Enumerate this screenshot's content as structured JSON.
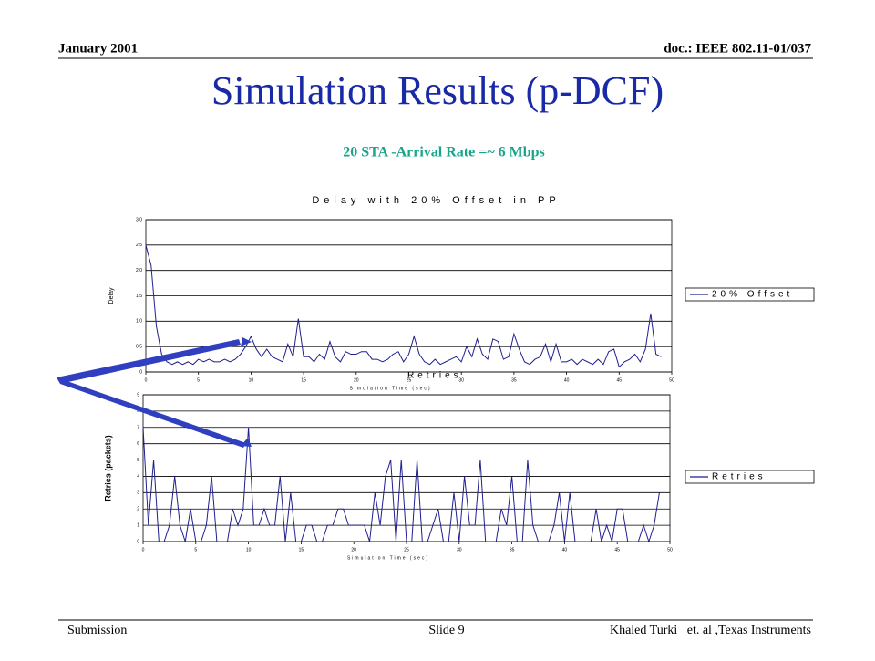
{
  "header": {
    "date": "January 2001",
    "doc": "doc.: IEEE 802.11-01/037"
  },
  "title": "Simulation Results (p-DCF)",
  "subtitle": "20 STA -Arrival Rate =~ 6 Mbps",
  "footer": {
    "left": "Submission",
    "center": "Slide 9",
    "right": "Khaled Turki   et. al ,Texas Instruments"
  },
  "chart_data": [
    {
      "type": "line",
      "title": "Delay with 20% Offset in PP",
      "x_label": "Simulation Time (sec)",
      "y_label": "Delay",
      "annotation": "Retries",
      "xlim": [
        0,
        50
      ],
      "xticks": [
        0,
        5,
        10,
        15,
        20,
        25,
        30,
        35,
        40,
        45,
        50
      ],
      "ylim": [
        0,
        3
      ],
      "yticks": [
        0,
        0.5,
        {
          "value": 1,
          "label": "1.0"
        },
        1.5,
        {
          "value": 2,
          "label": "2.0"
        },
        2.5,
        {
          "value": 3,
          "label": "3.0"
        }
      ],
      "grid": true,
      "x": [
        0,
        0.5,
        1,
        1.5,
        2,
        2.5,
        3,
        3.5,
        4,
        4.5,
        5,
        5.5,
        6,
        6.5,
        7,
        7.5,
        8,
        8.5,
        9,
        9.5,
        10,
        10.5,
        11,
        11.5,
        12,
        12.5,
        13,
        13.5,
        14,
        14.5,
        15,
        15.5,
        16,
        16.5,
        17,
        17.5,
        18,
        18.5,
        19,
        19.5,
        20,
        20.5,
        21,
        21.5,
        22,
        22.5,
        23,
        23.5,
        24,
        24.5,
        25,
        25.5,
        26,
        26.5,
        27,
        27.5,
        28,
        28.5,
        29,
        29.5,
        30,
        30.5,
        31,
        31.5,
        32,
        32.5,
        33,
        33.5,
        34,
        34.5,
        35,
        35.5,
        36,
        36.5,
        37,
        37.5,
        38,
        38.5,
        39,
        39.5,
        40,
        40.5,
        41,
        41.5,
        42,
        42.5,
        43,
        43.5,
        44,
        44.5,
        45,
        45.5,
        46,
        46.5,
        47,
        47.5,
        48,
        48.5,
        49
      ],
      "series": [
        {
          "name": "20% Offset",
          "color": "#1f1f8f",
          "values": [
            2.5,
            2.1,
            0.9,
            0.35,
            0.2,
            0.15,
            0.2,
            0.15,
            0.2,
            0.15,
            0.25,
            0.2,
            0.25,
            0.2,
            0.2,
            0.25,
            0.2,
            0.25,
            0.35,
            0.5,
            0.7,
            0.45,
            0.3,
            0.45,
            0.3,
            0.25,
            0.2,
            0.55,
            0.3,
            1.05,
            0.3,
            0.3,
            0.2,
            0.35,
            0.25,
            0.6,
            0.3,
            0.2,
            0.4,
            0.35,
            0.35,
            0.4,
            0.4,
            0.25,
            0.25,
            0.2,
            0.25,
            0.35,
            0.4,
            0.2,
            0.35,
            0.7,
            0.35,
            0.2,
            0.15,
            0.25,
            0.15,
            0.2,
            0.25,
            0.3,
            0.2,
            0.5,
            0.3,
            0.65,
            0.35,
            0.25,
            0.65,
            0.6,
            0.25,
            0.3,
            0.75,
            0.45,
            0.2,
            0.15,
            0.25,
            0.3,
            0.55,
            0.2,
            0.55,
            0.2,
            0.2,
            0.25,
            0.15,
            0.25,
            0.2,
            0.15,
            0.25,
            0.15,
            0.4,
            0.45,
            0.1,
            0.2,
            0.25,
            0.35,
            0.2,
            0.45,
            1.15,
            0.35,
            0.3
          ]
        }
      ]
    },
    {
      "type": "line",
      "x_label": "Simulation Time (sec)",
      "y_label": "Retries (packets)",
      "xlim": [
        0,
        50
      ],
      "xticks": [
        0,
        5,
        10,
        15,
        20,
        25,
        30,
        35,
        40,
        45,
        50
      ],
      "ylim": [
        0,
        9
      ],
      "yticks": [
        0,
        1,
        2,
        3,
        4,
        5,
        6,
        7,
        8,
        9
      ],
      "grid": true,
      "x": [
        0,
        0.5,
        1,
        1.5,
        2,
        2.5,
        3,
        3.5,
        4,
        4.5,
        5,
        5.5,
        6,
        6.5,
        7,
        7.5,
        8,
        8.5,
        9,
        9.5,
        10,
        10.5,
        11,
        11.5,
        12,
        12.5,
        13,
        13.5,
        14,
        14.5,
        15,
        15.5,
        16,
        16.5,
        17,
        17.5,
        18,
        18.5,
        19,
        19.5,
        20,
        20.5,
        21,
        21.5,
        22,
        22.5,
        23,
        23.5,
        24,
        24.5,
        25,
        25.5,
        26,
        26.5,
        27,
        27.5,
        28,
        28.5,
        29,
        29.5,
        30,
        30.5,
        31,
        31.5,
        32,
        32.5,
        33,
        33.5,
        34,
        34.5,
        35,
        35.5,
        36,
        36.5,
        37,
        37.5,
        38,
        38.5,
        39,
        39.5,
        40,
        40.5,
        41,
        41.5,
        42,
        42.5,
        43,
        43.5,
        44,
        44.5,
        45,
        45.5,
        46,
        46.5,
        47,
        47.5,
        48,
        48.5,
        49
      ],
      "series": [
        {
          "name": "Retries",
          "color": "#1f1f8f",
          "values": [
            7,
            1,
            5,
            0,
            0,
            1,
            4,
            1,
            0,
            2,
            0,
            0,
            1,
            4,
            0,
            0,
            0,
            2,
            1,
            2,
            7,
            1,
            1,
            2,
            1,
            1,
            4,
            0,
            3,
            0,
            0,
            1,
            1,
            0,
            0,
            1,
            1,
            2,
            2,
            1,
            1,
            1,
            1,
            0,
            3,
            1,
            4,
            5,
            0,
            5,
            0,
            0,
            5,
            0,
            0,
            1,
            2,
            0,
            0,
            3,
            0,
            4,
            1,
            1,
            5,
            0,
            0,
            0,
            2,
            1,
            4,
            0,
            0,
            5,
            1,
            0,
            0,
            0,
            1,
            3,
            0,
            3,
            0,
            0,
            0,
            0,
            2,
            0,
            1,
            0,
            2,
            2,
            0,
            0,
            0,
            1,
            0,
            1,
            3
          ]
        }
      ]
    }
  ]
}
